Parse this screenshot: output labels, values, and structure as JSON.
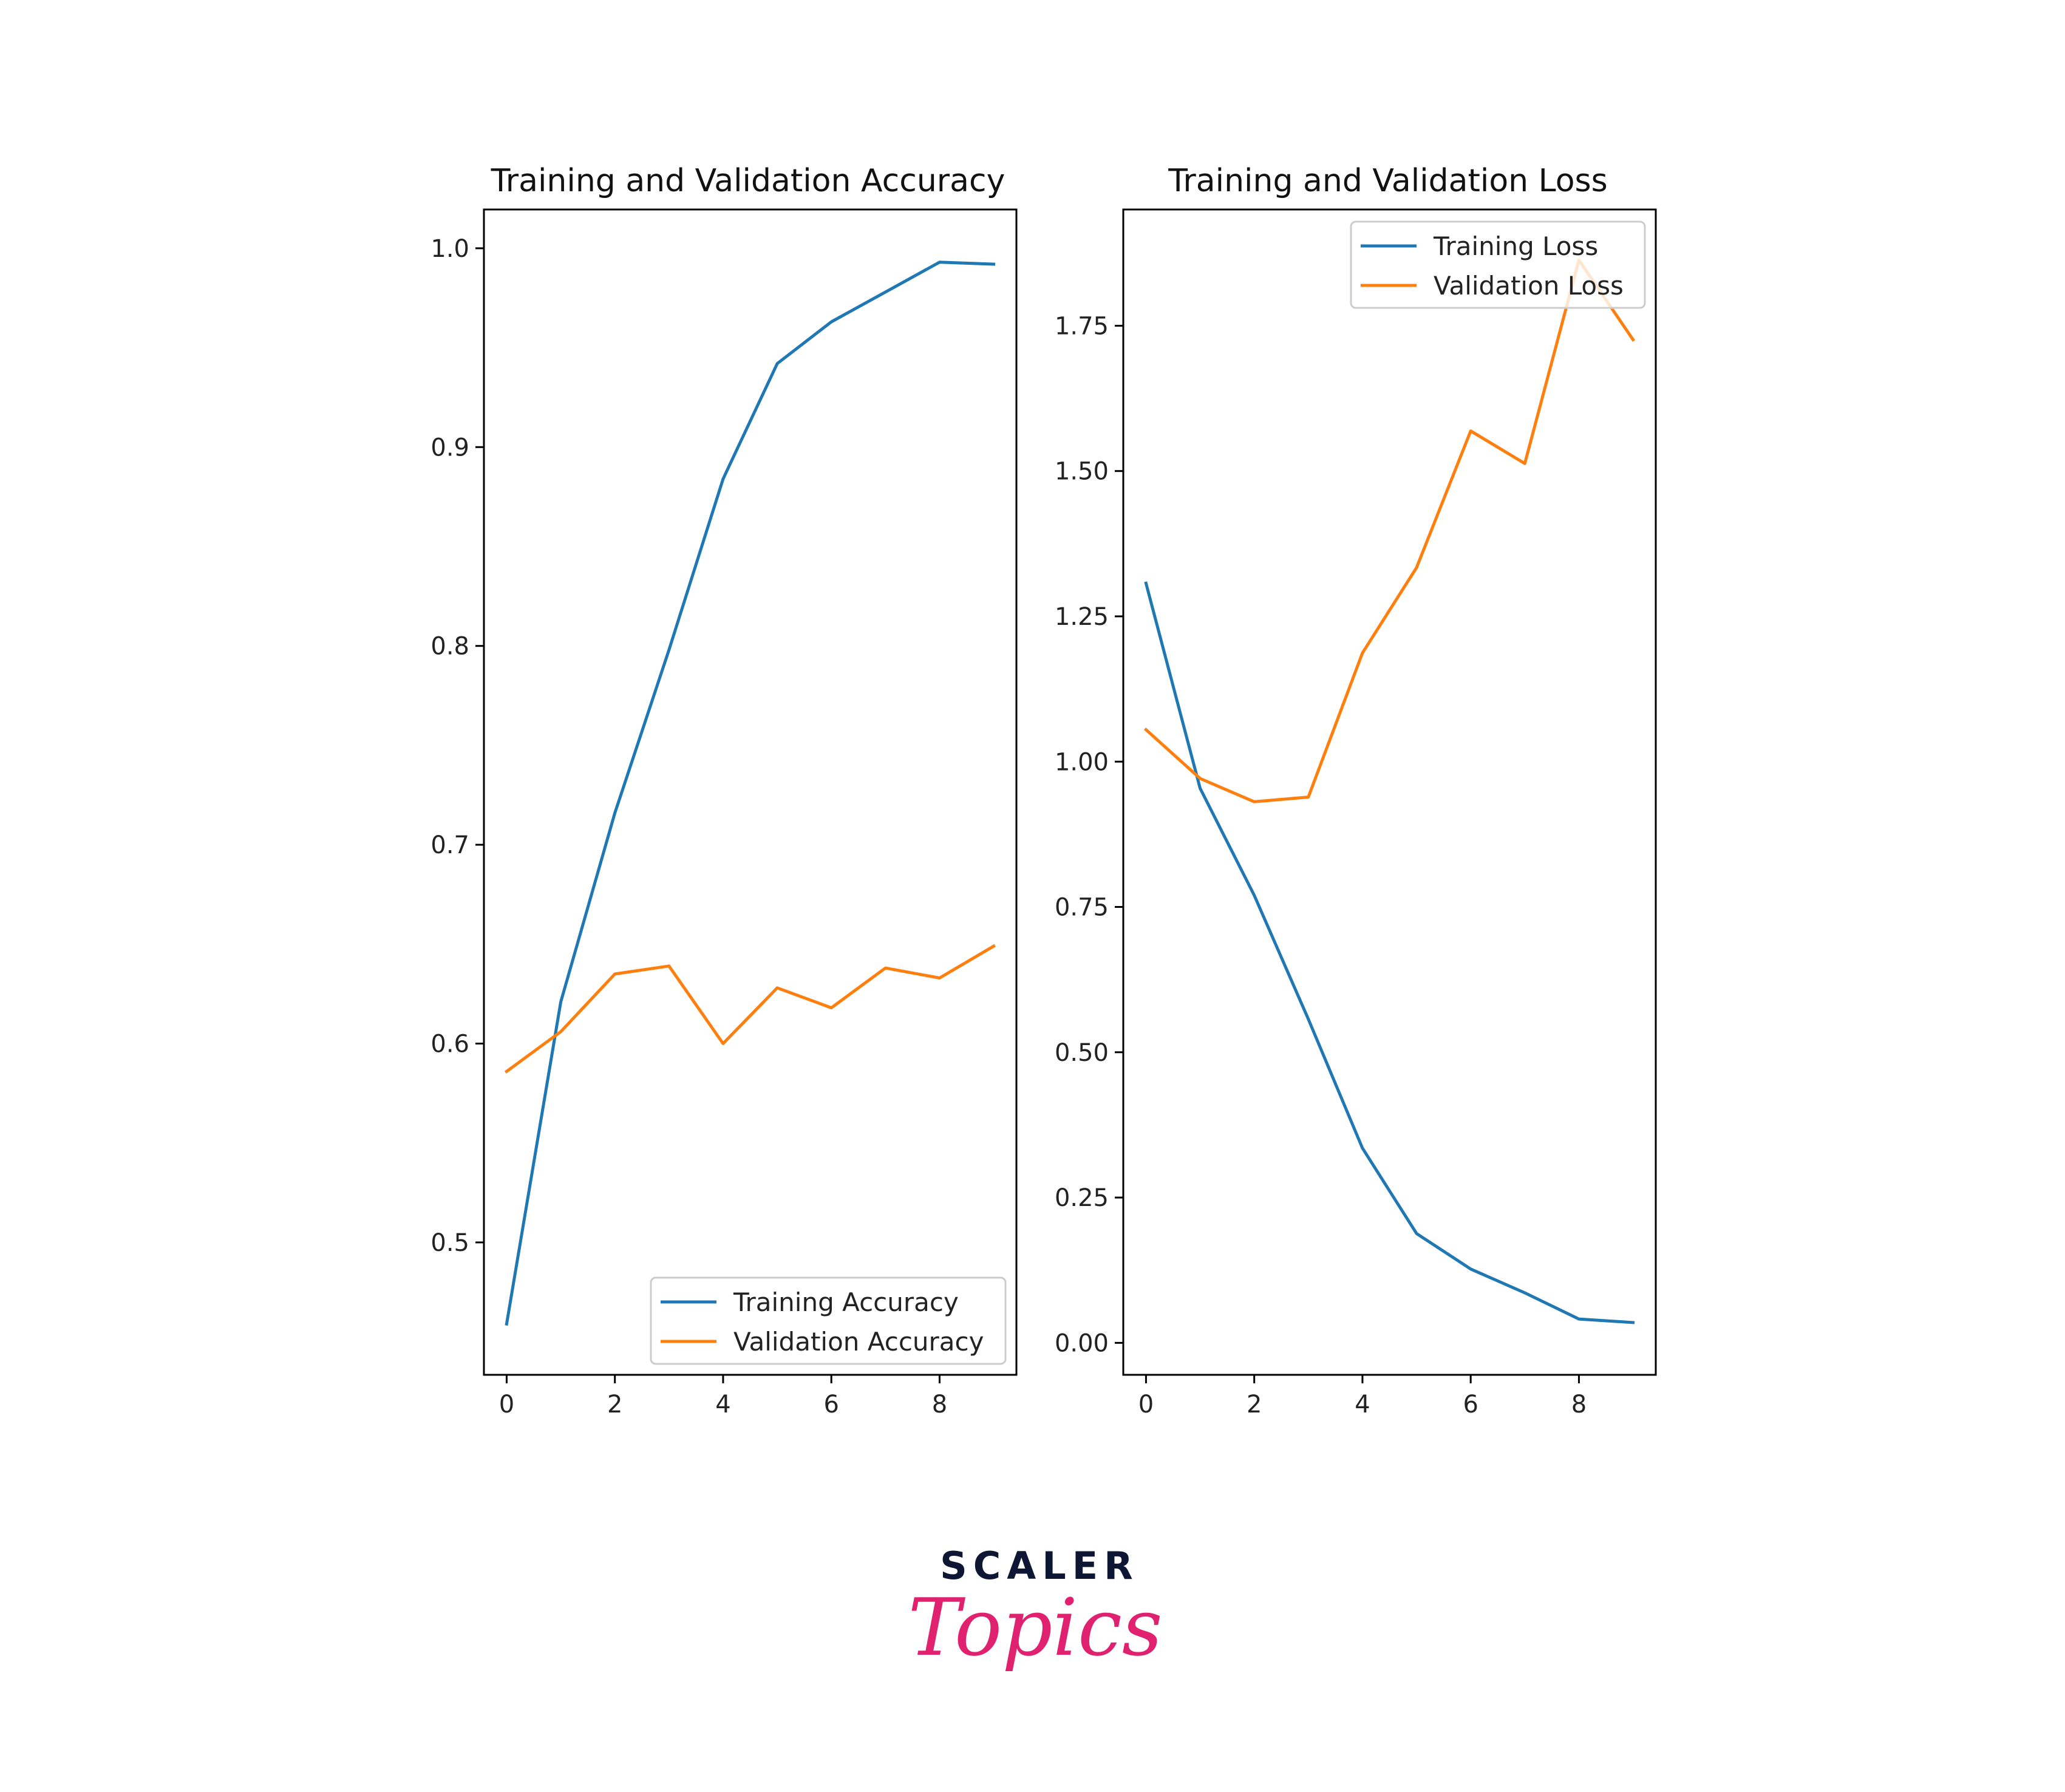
{
  "chart_data": [
    {
      "type": "line",
      "title": "Training and Validation Accuracy",
      "xlabel": "",
      "ylabel": "",
      "x": [
        0,
        1,
        2,
        3,
        4,
        5,
        6,
        7,
        8,
        9
      ],
      "xlim": [
        -0.42,
        9.42
      ],
      "ylim": [
        0.4334,
        1.0195
      ],
      "xticks": [
        0,
        2,
        4,
        6,
        8
      ],
      "yticks": [
        0.5,
        0.6,
        0.7,
        0.8,
        0.9,
        1.0
      ],
      "xtick_labels": [
        "0",
        "2",
        "4",
        "6",
        "8"
      ],
      "ytick_labels": [
        "0.5",
        "0.6",
        "0.7",
        "0.8",
        "0.9",
        "1.0"
      ],
      "legend_position": "lower-right",
      "series": [
        {
          "name": "Training Accuracy",
          "color": "#1f77b4",
          "values": [
            0.459,
            0.621,
            0.716,
            0.798,
            0.884,
            0.942,
            0.963,
            0.978,
            0.993,
            0.992
          ]
        },
        {
          "name": "Validation Accuracy",
          "color": "#ff7f0e",
          "values": [
            0.586,
            0.606,
            0.635,
            0.639,
            0.6,
            0.628,
            0.618,
            0.638,
            0.633,
            0.649
          ]
        }
      ]
    },
    {
      "type": "line",
      "title": "Training and Validation Loss",
      "xlabel": "",
      "ylabel": "",
      "x": [
        0,
        1,
        2,
        3,
        4,
        5,
        6,
        7,
        8,
        9
      ],
      "xlim": [
        -0.42,
        9.42
      ],
      "ylim": [
        -0.055,
        1.95
      ],
      "xticks": [
        0,
        2,
        4,
        6,
        8
      ],
      "yticks": [
        0.0,
        0.25,
        0.5,
        0.75,
        1.0,
        1.25,
        1.5,
        1.75
      ],
      "xtick_labels": [
        "0",
        "2",
        "4",
        "6",
        "8"
      ],
      "ytick_labels": [
        "0.00",
        "0.25",
        "0.50",
        "0.75",
        "1.00",
        "1.25",
        "1.50",
        "1.75"
      ],
      "legend_position": "upper-right",
      "series": [
        {
          "name": "Training Loss",
          "color": "#1f77b4",
          "values": [
            1.307,
            0.954,
            0.77,
            0.557,
            0.335,
            0.188,
            0.127,
            0.086,
            0.041,
            0.035
          ]
        },
        {
          "name": "Validation Loss",
          "color": "#ff7f0e",
          "values": [
            1.055,
            0.971,
            0.931,
            0.939,
            1.187,
            1.334,
            1.569,
            1.513,
            1.863,
            1.726
          ]
        }
      ]
    }
  ],
  "brand": {
    "name_top": "SCALER",
    "name_bottom": "Topics",
    "colors": {
      "top": "#0d1733",
      "bottom": "#e0216f"
    }
  }
}
